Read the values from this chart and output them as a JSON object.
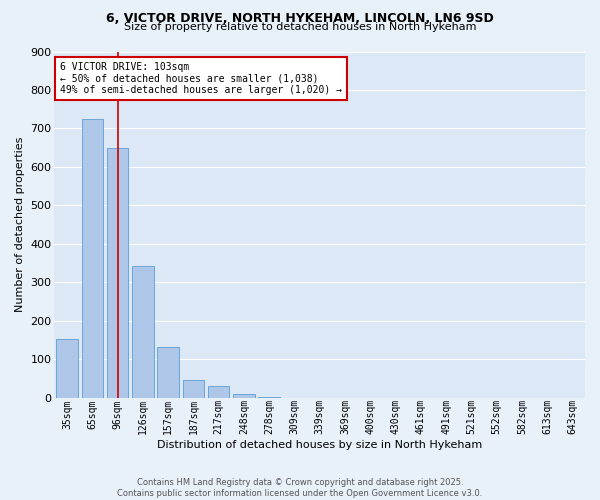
{
  "title_line1": "6, VICTOR DRIVE, NORTH HYKEHAM, LINCOLN, LN6 9SD",
  "title_line2": "Size of property relative to detached houses in North Hykeham",
  "categories": [
    "35sqm",
    "65sqm",
    "96sqm",
    "126sqm",
    "157sqm",
    "187sqm",
    "217sqm",
    "248sqm",
    "278sqm",
    "309sqm",
    "339sqm",
    "369sqm",
    "400sqm",
    "430sqm",
    "461sqm",
    "491sqm",
    "521sqm",
    "552sqm",
    "582sqm",
    "613sqm",
    "643sqm"
  ],
  "values": [
    152,
    724,
    650,
    343,
    132,
    45,
    31,
    11,
    3,
    0,
    0,
    0,
    0,
    0,
    0,
    0,
    0,
    0,
    0,
    0,
    0
  ],
  "bar_color": "#aec6e8",
  "bar_edge_color": "#5a9fd4",
  "vline_x": 2,
  "vline_color": "#cc0000",
  "xlabel": "Distribution of detached houses by size in North Hykeham",
  "ylabel": "Number of detached properties",
  "ylim": [
    0,
    900
  ],
  "yticks": [
    0,
    100,
    200,
    300,
    400,
    500,
    600,
    700,
    800,
    900
  ],
  "annotation_title": "6 VICTOR DRIVE: 103sqm",
  "annotation_line2": "← 50% of detached houses are smaller (1,038)",
  "annotation_line3": "49% of semi-detached houses are larger (1,020) →",
  "annotation_box_color": "#cc0000",
  "footer_line1": "Contains HM Land Registry data © Crown copyright and database right 2025.",
  "footer_line2": "Contains public sector information licensed under the Open Government Licence v3.0.",
  "bg_color": "#e8f0f8",
  "plot_bg_color": "#dce8f5",
  "title1_fontsize": 9,
  "title2_fontsize": 8,
  "xlabel_fontsize": 8,
  "ylabel_fontsize": 8,
  "xtick_fontsize": 7,
  "ytick_fontsize": 8,
  "annot_fontsize": 7,
  "footer_fontsize": 6
}
